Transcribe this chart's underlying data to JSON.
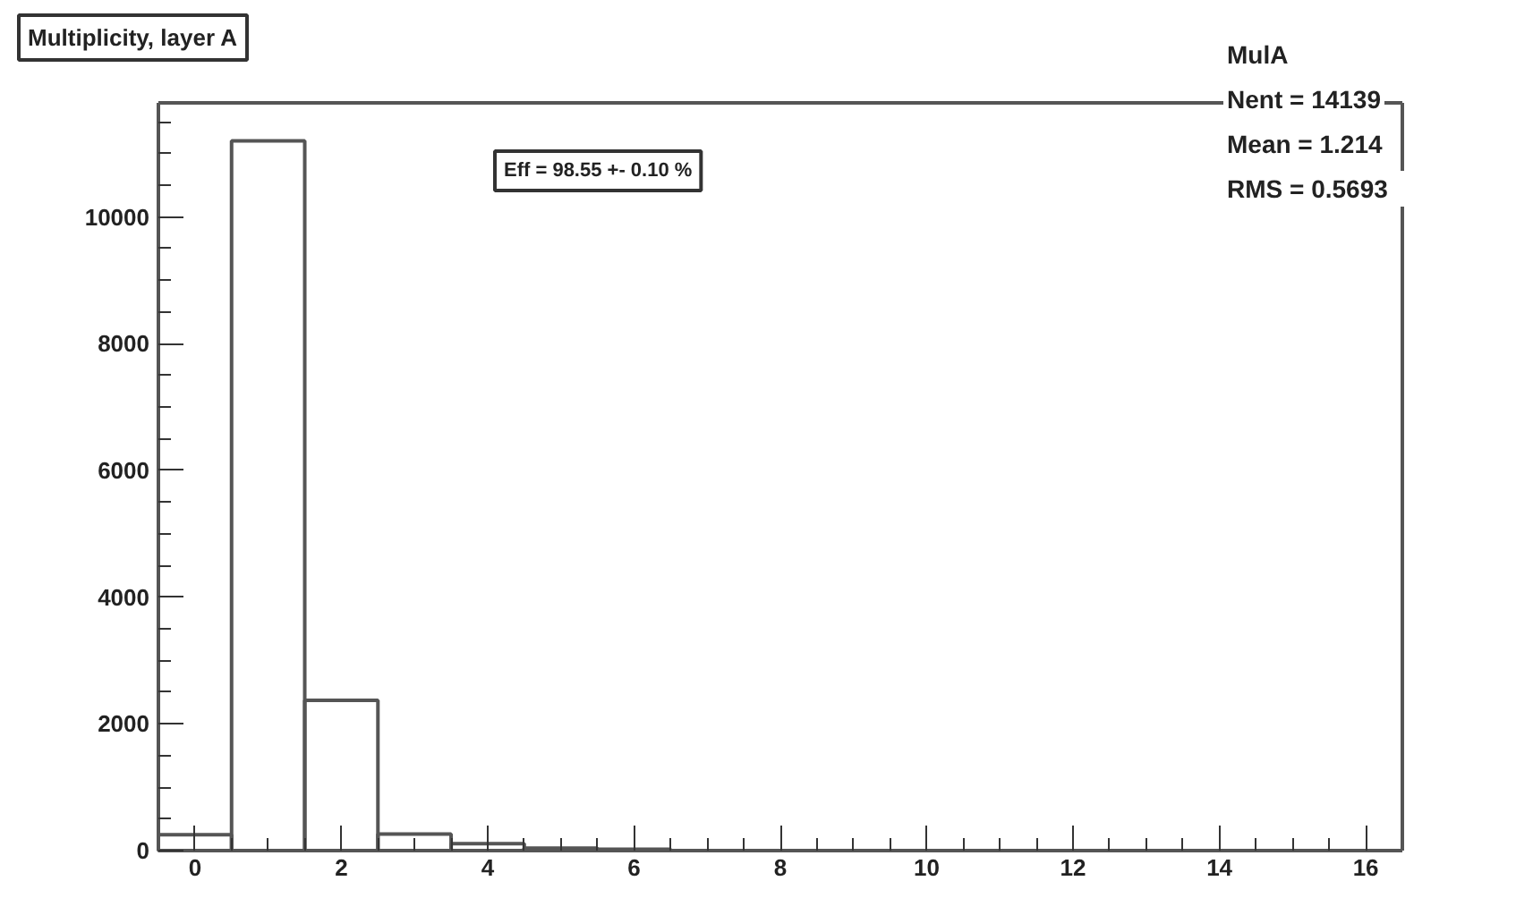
{
  "chart_data": {
    "type": "histogram",
    "title": "Multiplicity, layer A",
    "bins": [
      -0.5,
      0.5,
      1.5,
      2.5,
      3.5,
      4.5,
      5.5,
      6.5,
      7.5,
      8.5,
      9.5,
      10.5,
      11.5,
      12.5,
      13.5,
      14.5,
      15.5,
      16.5
    ],
    "values": [
      250,
      11200,
      2370,
      260,
      110,
      40,
      20,
      0,
      0,
      0,
      0,
      0,
      0,
      0,
      0,
      0,
      0
    ],
    "color": "#555555",
    "xlim": [
      -0.5,
      16.5
    ],
    "ylim": [
      0,
      11800
    ],
    "xticks": [
      0,
      2,
      4,
      6,
      8,
      10,
      12,
      14,
      16
    ],
    "yticks": [
      0,
      2000,
      4000,
      6000,
      8000,
      10000
    ],
    "annotations": [
      "Eff = 98.55 +- 0.10 %",
      "MulA",
      "Nent = 14139",
      "Mean  =  1.214",
      "RMS   = 0.5693"
    ]
  }
}
